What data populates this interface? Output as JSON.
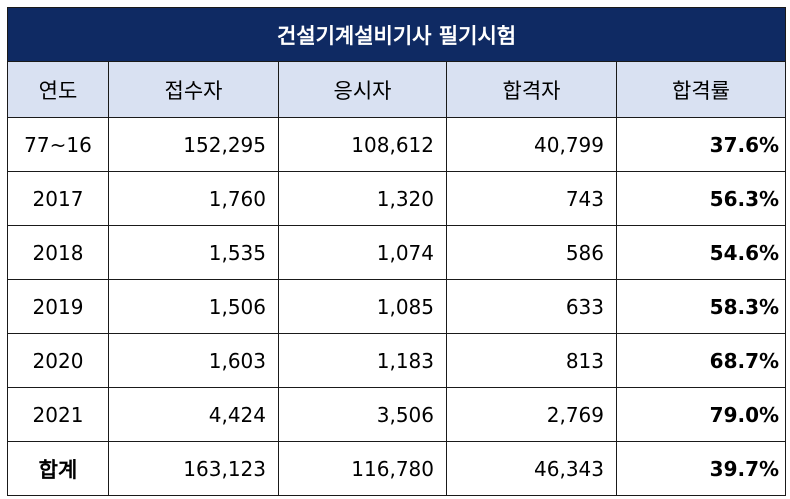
{
  "table": {
    "title": "건설기계설비기사 필기시험",
    "headers": [
      "연도",
      "접수자",
      "응시자",
      "합격자",
      "합격률"
    ],
    "rows": [
      {
        "year": "77~16",
        "applicants": "152,295",
        "examinees": "108,612",
        "passers": "40,799",
        "rate": "37.6%"
      },
      {
        "year": "2017",
        "applicants": "1,760",
        "examinees": "1,320",
        "passers": "743",
        "rate": "56.3%"
      },
      {
        "year": "2018",
        "applicants": "1,535",
        "examinees": "1,074",
        "passers": "586",
        "rate": "54.6%"
      },
      {
        "year": "2019",
        "applicants": "1,506",
        "examinees": "1,085",
        "passers": "633",
        "rate": "58.3%"
      },
      {
        "year": "2020",
        "applicants": "1,603",
        "examinees": "1,183",
        "passers": "813",
        "rate": "68.7%"
      },
      {
        "year": "2021",
        "applicants": "4,424",
        "examinees": "3,506",
        "passers": "2,769",
        "rate": "79.0%"
      }
    ],
    "total": {
      "label": "합계",
      "applicants": "163,123",
      "examinees": "116,780",
      "passers": "46,343",
      "rate": "39.7%"
    }
  },
  "colors": {
    "title_bg": "#0f2a63",
    "header_bg": "#d9e1f2"
  }
}
